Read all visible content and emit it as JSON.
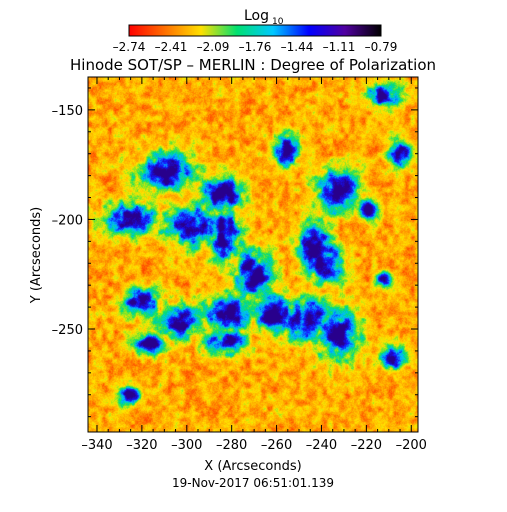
{
  "chart_data": {
    "type": "heatmap",
    "title": "Hinode SOT/SP – MERLIN : Degree of Polarization",
    "colorbar": {
      "label_main": "Log",
      "label_sub": "10",
      "ticks": [
        "–2.74",
        "–2.41",
        "–2.09",
        "–1.76",
        "–1.44",
        "–1.11",
        "–0.79"
      ],
      "range": [
        -2.74,
        -0.79
      ],
      "colormap": [
        "#ff0000",
        "#ff7000",
        "#ffe000",
        "#00e070",
        "#00c8ff",
        "#0000ff",
        "#5000a0",
        "#000000"
      ]
    },
    "xlabel": "X (Arcseconds)",
    "ylabel": "Y (Arcseconds)",
    "xlim": [
      -344,
      -197
    ],
    "ylim": [
      -297,
      -135
    ],
    "xticks": [
      {
        "v": -340,
        "label": "–340"
      },
      {
        "v": -320,
        "label": "–320"
      },
      {
        "v": -300,
        "label": "–300"
      },
      {
        "v": -280,
        "label": "–280"
      },
      {
        "v": -260,
        "label": "–260"
      },
      {
        "v": -240,
        "label": "–240"
      },
      {
        "v": -220,
        "label": "–220"
      },
      {
        "v": -200,
        "label": "–200"
      }
    ],
    "yticks": [
      {
        "v": -150,
        "label": "–150"
      },
      {
        "v": -200,
        "label": "–200"
      },
      {
        "v": -250,
        "label": "–250"
      }
    ],
    "network_regions": [
      [
        -309,
        -178,
        14,
        10
      ],
      [
        -325,
        -200,
        12,
        9
      ],
      [
        -295,
        -203,
        17,
        10
      ],
      [
        -285,
        -188,
        10,
        9
      ],
      [
        -270,
        -225,
        10,
        12
      ],
      [
        -282,
        -242,
        11,
        9
      ],
      [
        -261,
        -243,
        9,
        10
      ],
      [
        -247,
        -245,
        12,
        11
      ],
      [
        -233,
        -252,
        11,
        13
      ],
      [
        -239,
        -220,
        9,
        10
      ],
      [
        -233,
        -187,
        11,
        10
      ],
      [
        -243,
        -212,
        8,
        12
      ],
      [
        -303,
        -246,
        11,
        8
      ],
      [
        -320,
        -237,
        9,
        7
      ],
      [
        -283,
        -256,
        10,
        6
      ],
      [
        -317,
        -257,
        8,
        5
      ],
      [
        -283,
        -206,
        8,
        14
      ],
      [
        -256,
        -168,
        7,
        8
      ],
      [
        -212,
        -143,
        8,
        6
      ],
      [
        -205,
        -170,
        6,
        7
      ],
      [
        -219,
        -195,
        5,
        6
      ],
      [
        -208,
        -263,
        6,
        6
      ],
      [
        -213,
        -227,
        4,
        4
      ],
      [
        -326,
        -280,
        6,
        5
      ]
    ],
    "footer": "19-Nov-2017  06:51:01.139"
  }
}
